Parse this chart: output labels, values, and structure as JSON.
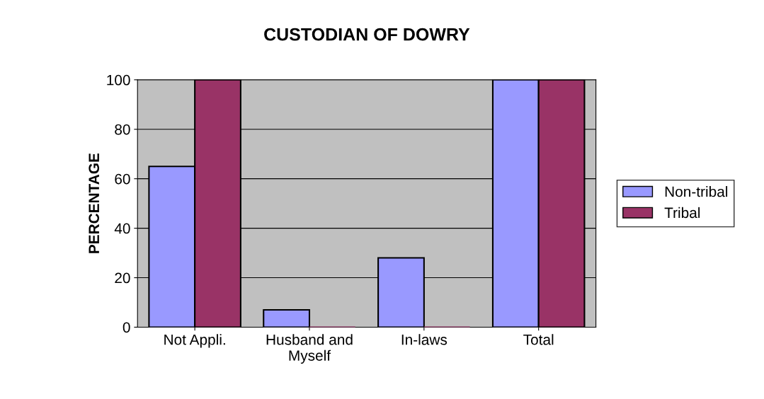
{
  "chart_data": {
    "type": "bar",
    "title": "CUSTODIAN OF DOWRY",
    "ylabel": "PERCENTAGE",
    "categories": [
      "Not Appli.",
      "Husband and\nMyself",
      "In-laws",
      "Total"
    ],
    "series": [
      {
        "name": "Non-tribal",
        "color": "#9999ff",
        "values": [
          65,
          7,
          28,
          100
        ]
      },
      {
        "name": "Tribal",
        "color": "#993366",
        "values": [
          100,
          0,
          0,
          100
        ]
      }
    ],
    "ylim": [
      0,
      100
    ],
    "yticks": [
      0,
      20,
      40,
      60,
      80,
      100
    ],
    "grid": "y",
    "legend": "right"
  }
}
